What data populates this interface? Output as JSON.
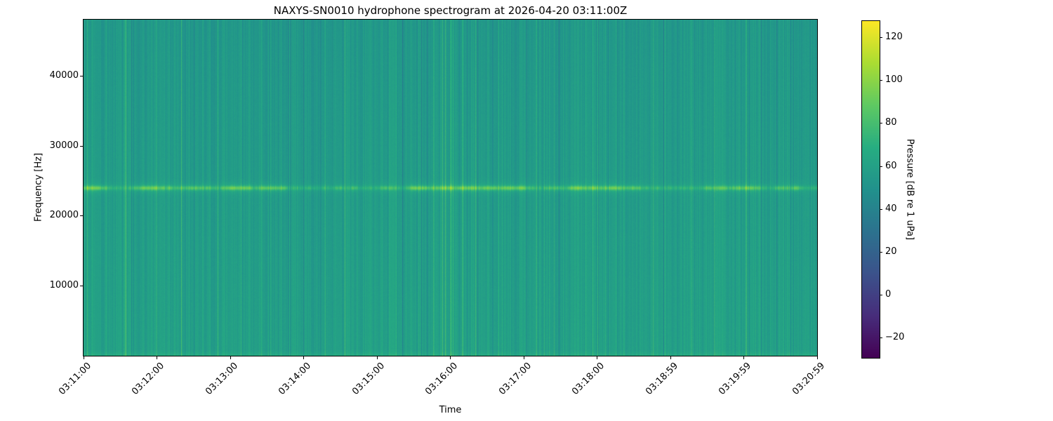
{
  "figure": {
    "background": "#ffffff",
    "text_color": "#000000",
    "frame_color": "#000000"
  },
  "chart_data": {
    "type": "heatmap",
    "title": "NAXYS-SN0010 hydrophone spectrogram at 2026-04-20 03:11:00Z",
    "xlabel": "Time",
    "ylabel": "Frequency [Hz]",
    "colorbar_label": "Pressure [dB re 1 uPa]",
    "x_tick_labels": [
      "03:11:00",
      "03:12:00",
      "03:13:00",
      "03:14:00",
      "03:15:00",
      "03:16:00",
      "03:17:00",
      "03:18:00",
      "03:18:59",
      "03:19:59",
      "03:20:59"
    ],
    "y_tick_values": [
      10000,
      20000,
      30000,
      40000
    ],
    "y_tick_labels": [
      "10000",
      "20000",
      "30000",
      "40000"
    ],
    "freq_range_hz": [
      0,
      48000
    ],
    "time_range": [
      "03:11:00",
      "03:20:59"
    ],
    "value_range_db": [
      -29.5,
      127.6
    ],
    "colorbar_tick_values": [
      120,
      100,
      80,
      60,
      40,
      20,
      0,
      -20
    ],
    "colorbar_tick_labels": [
      "120",
      "100",
      "80",
      "60",
      "40",
      "20",
      "0",
      "−20"
    ],
    "colormap": "viridis",
    "colormap_stops": [
      "#440154",
      "#472d7b",
      "#3b528b",
      "#2c728e",
      "#21918c",
      "#27ad81",
      "#5ec962",
      "#aadc32",
      "#fde725"
    ],
    "grid": false,
    "legend": false,
    "render": {
      "background_level_db": 57,
      "striation_amp_db": 4.5,
      "bright_column_prob": 0.05,
      "dark_column_prob": 0.05,
      "pixel_noise_db": 2.5,
      "vertical_gradient_db": 6,
      "tonal_band": {
        "freq_hz": 24000,
        "peak_boost_db": 22,
        "halo_boost_db": 6
      },
      "low_freq_edge_boost_db": 7,
      "seed": 42
    }
  }
}
